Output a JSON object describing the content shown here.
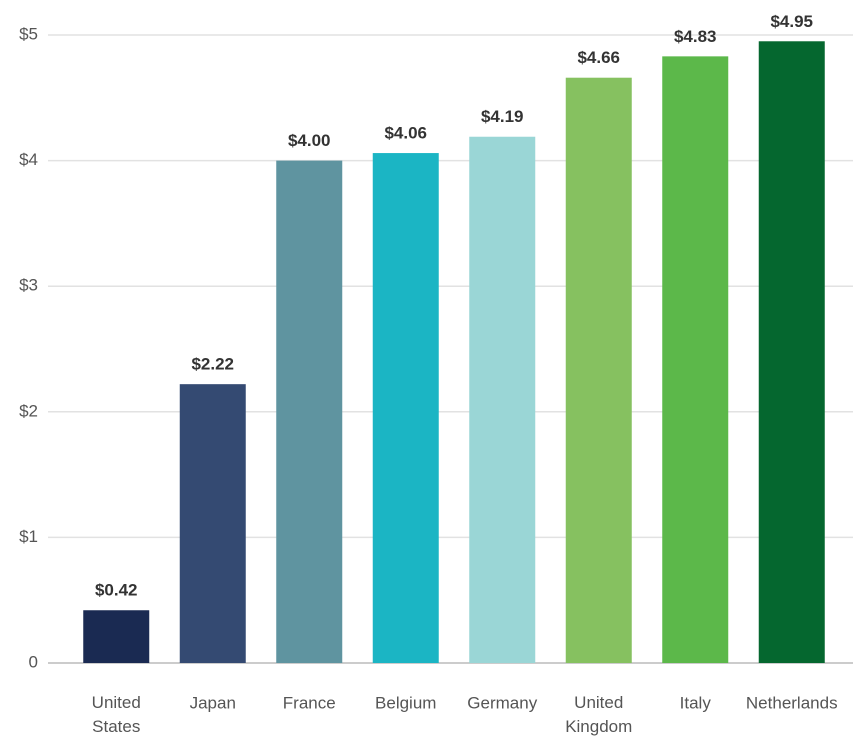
{
  "chart_data": {
    "type": "bar",
    "categories": [
      "United States",
      "Japan",
      "France",
      "Belgium",
      "Germany",
      "United Kingdom",
      "Italy",
      "Netherlands"
    ],
    "values": [
      0.42,
      2.22,
      4.0,
      4.06,
      4.19,
      4.66,
      4.83,
      4.95
    ],
    "value_labels": [
      "$0.42",
      "$2.22",
      "$4.00",
      "$4.06",
      "$4.19",
      "$4.66",
      "$4.83",
      "$4.95"
    ],
    "colors": [
      "#1a2a52",
      "#344a72",
      "#5f94a0",
      "#1bb5c4",
      "#9ad6d6",
      "#86c160",
      "#5cb84a",
      "#05672f"
    ],
    "ylim": [
      0,
      5
    ],
    "yticks": [
      0,
      {
        "value": 1,
        "label": "$1"
      },
      {
        "value": 2,
        "label": "$2"
      },
      {
        "value": 3,
        "label": "$3"
      },
      {
        "value": 4,
        "label": "$4"
      },
      {
        "value": 5,
        "label": "$5"
      }
    ],
    "grid": true
  }
}
